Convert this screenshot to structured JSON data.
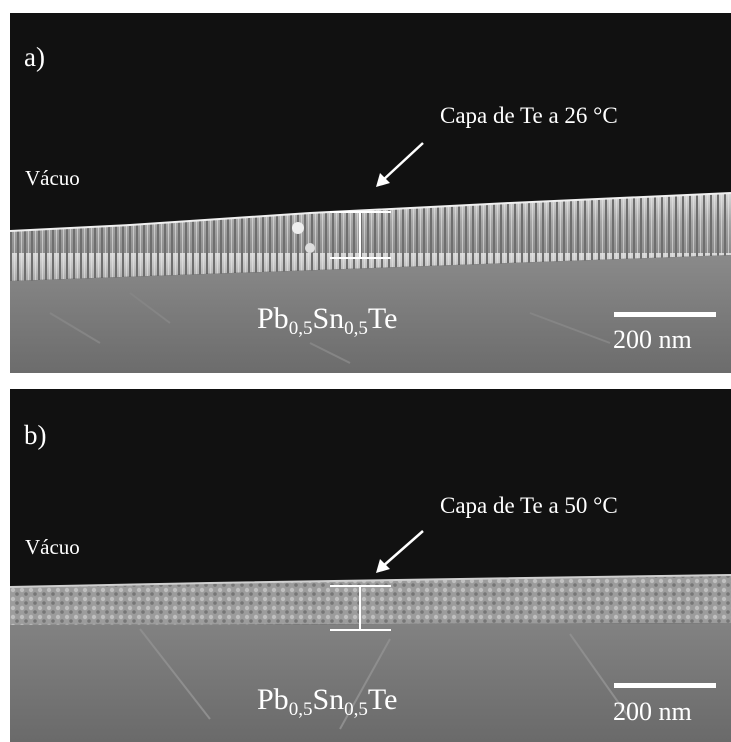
{
  "panels": [
    {
      "letter": "a)",
      "medium_label": "Vácuo",
      "layer_label": "Capa de Te a 26 °C",
      "material": {
        "base": "Pb",
        "sub1": "0,5",
        "mid": "Sn",
        "sub2": "0,5",
        "end": "Te"
      },
      "scale_label": "200 nm"
    },
    {
      "letter": "b)",
      "medium_label": "Vácuo",
      "layer_label": "Capa de Te a 50 °C",
      "material": {
        "base": "Pb",
        "sub1": "0,5",
        "mid": "Sn",
        "sub2": "0,5",
        "end": "Te"
      },
      "scale_label": "200 nm"
    }
  ],
  "colors": {
    "vacuum": "#111111",
    "film": "#9a9a9a",
    "substrate": "#7a7a7a",
    "annotation": "#ffffff"
  }
}
